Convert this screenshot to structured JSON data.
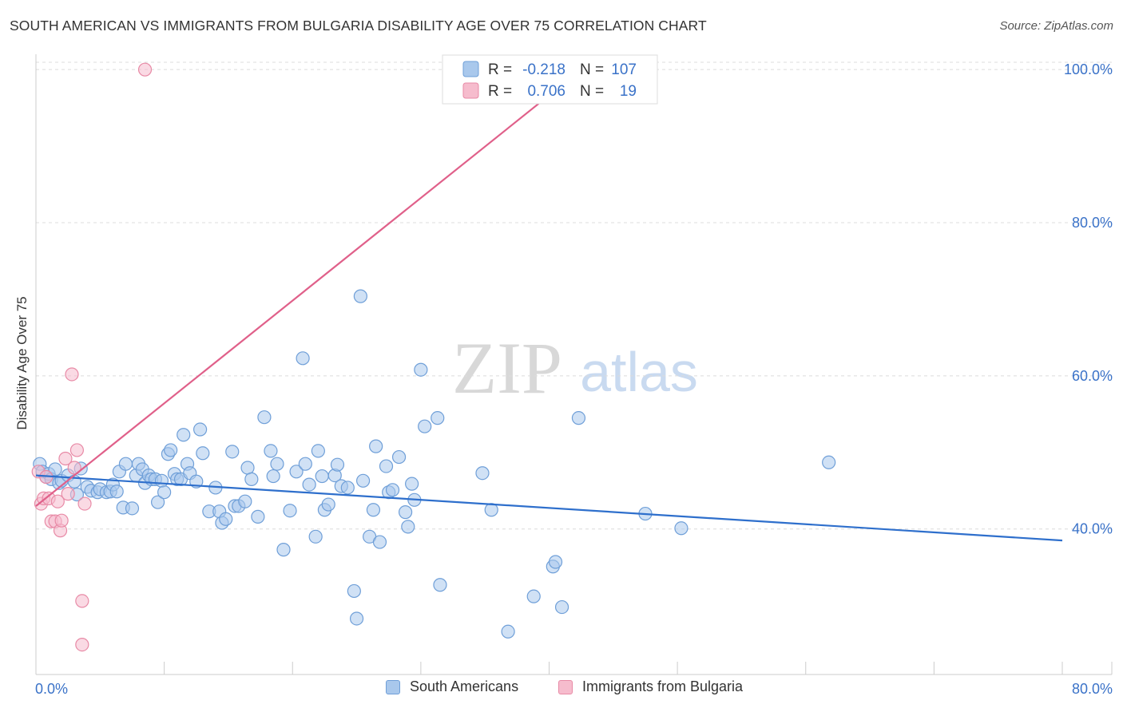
{
  "header": {
    "title": "SOUTH AMERICAN VS IMMIGRANTS FROM BULGARIA DISABILITY AGE OVER 75 CORRELATION CHART",
    "source": "Source: ZipAtlas.com"
  },
  "watermark": {
    "zip": "ZIP",
    "atlas": "atlas"
  },
  "colors": {
    "blue_fill": "#a9c8ec",
    "blue_stroke": "#6f9fd8",
    "blue_line": "#2e6fcc",
    "pink_fill": "#f6bccd",
    "pink_stroke": "#e88aa6",
    "pink_line": "#e0608a",
    "axis_text": "#3a72c8",
    "grid": "#dcdcdc"
  },
  "chart_data": {
    "type": "scatter",
    "title": "SOUTH AMERICAN VS IMMIGRANTS FROM BULGARIA DISABILITY AGE OVER 75 CORRELATION CHART",
    "xlabel": "",
    "ylabel": "Disability Age Over 75",
    "xlim": [
      0,
      80
    ],
    "ylim": [
      21,
      102
    ],
    "x_tick_labels": [
      "0.0%",
      "80.0%"
    ],
    "y_ticks": [
      40,
      60,
      80,
      100
    ],
    "y_tick_labels": [
      "40.0%",
      "60.0%",
      "80.0%",
      "100.0%"
    ],
    "legend": {
      "rows": [
        {
          "r_label": "R =",
          "r_value": "-0.218",
          "n_label": "N =",
          "n_value": "107"
        },
        {
          "r_label": "R =",
          "r_value": "0.706",
          "n_label": "N =",
          "n_value": "19"
        }
      ]
    },
    "series": [
      {
        "name": "South Americans",
        "trend": {
          "x": [
            0,
            80
          ],
          "y": [
            47.0,
            38.5
          ]
        },
        "points": [
          {
            "x": 0.3,
            "y": 48.5
          },
          {
            "x": 0.5,
            "y": 47.5
          },
          {
            "x": 0.8,
            "y": 46.8
          },
          {
            "x": 1.0,
            "y": 47.2
          },
          {
            "x": 1.2,
            "y": 46.5
          },
          {
            "x": 1.5,
            "y": 47.8
          },
          {
            "x": 1.8,
            "y": 46.0
          },
          {
            "x": 2.0,
            "y": 46.3
          },
          {
            "x": 2.5,
            "y": 47.0
          },
          {
            "x": 3.0,
            "y": 46.2
          },
          {
            "x": 3.2,
            "y": 44.5
          },
          {
            "x": 3.5,
            "y": 47.9
          },
          {
            "x": 4.0,
            "y": 45.5
          },
          {
            "x": 4.3,
            "y": 45.0
          },
          {
            "x": 4.8,
            "y": 44.8
          },
          {
            "x": 5.0,
            "y": 45.2
          },
          {
            "x": 5.5,
            "y": 44.8
          },
          {
            "x": 5.8,
            "y": 44.9
          },
          {
            "x": 6.0,
            "y": 45.8
          },
          {
            "x": 6.3,
            "y": 44.9
          },
          {
            "x": 6.5,
            "y": 47.5
          },
          {
            "x": 6.8,
            "y": 42.8
          },
          {
            "x": 7.0,
            "y": 48.5
          },
          {
            "x": 7.5,
            "y": 42.7
          },
          {
            "x": 7.8,
            "y": 47.0
          },
          {
            "x": 8.0,
            "y": 48.5
          },
          {
            "x": 8.3,
            "y": 47.8
          },
          {
            "x": 8.5,
            "y": 46.0
          },
          {
            "x": 8.8,
            "y": 47.0
          },
          {
            "x": 9.0,
            "y": 46.5
          },
          {
            "x": 9.3,
            "y": 46.5
          },
          {
            "x": 9.5,
            "y": 43.5
          },
          {
            "x": 9.8,
            "y": 46.3
          },
          {
            "x": 10.0,
            "y": 44.8
          },
          {
            "x": 10.3,
            "y": 49.8
          },
          {
            "x": 10.5,
            "y": 50.3
          },
          {
            "x": 10.8,
            "y": 47.2
          },
          {
            "x": 11.0,
            "y": 46.5
          },
          {
            "x": 11.3,
            "y": 46.5
          },
          {
            "x": 11.5,
            "y": 52.3
          },
          {
            "x": 11.8,
            "y": 48.5
          },
          {
            "x": 12.0,
            "y": 47.3
          },
          {
            "x": 12.5,
            "y": 46.2
          },
          {
            "x": 12.8,
            "y": 53.0
          },
          {
            "x": 13.0,
            "y": 49.9
          },
          {
            "x": 13.5,
            "y": 42.3
          },
          {
            "x": 14.0,
            "y": 45.4
          },
          {
            "x": 14.3,
            "y": 42.3
          },
          {
            "x": 14.5,
            "y": 40.8
          },
          {
            "x": 14.8,
            "y": 41.3
          },
          {
            "x": 15.3,
            "y": 50.1
          },
          {
            "x": 15.5,
            "y": 43.0
          },
          {
            "x": 15.8,
            "y": 43.0
          },
          {
            "x": 16.3,
            "y": 43.6
          },
          {
            "x": 16.5,
            "y": 48.0
          },
          {
            "x": 16.8,
            "y": 46.5
          },
          {
            "x": 17.3,
            "y": 41.6
          },
          {
            "x": 17.8,
            "y": 54.6
          },
          {
            "x": 18.3,
            "y": 50.2
          },
          {
            "x": 18.5,
            "y": 46.9
          },
          {
            "x": 18.8,
            "y": 48.5
          },
          {
            "x": 19.3,
            "y": 37.3
          },
          {
            "x": 19.8,
            "y": 42.4
          },
          {
            "x": 20.3,
            "y": 47.5
          },
          {
            "x": 20.8,
            "y": 62.3
          },
          {
            "x": 21.0,
            "y": 48.5
          },
          {
            "x": 21.3,
            "y": 45.8
          },
          {
            "x": 21.8,
            "y": 39.0
          },
          {
            "x": 22.0,
            "y": 50.2
          },
          {
            "x": 22.3,
            "y": 46.9
          },
          {
            "x": 22.5,
            "y": 42.5
          },
          {
            "x": 22.8,
            "y": 43.2
          },
          {
            "x": 23.3,
            "y": 47.0
          },
          {
            "x": 23.5,
            "y": 48.4
          },
          {
            "x": 23.8,
            "y": 45.6
          },
          {
            "x": 24.3,
            "y": 45.4
          },
          {
            "x": 24.8,
            "y": 31.9
          },
          {
            "x": 25.0,
            "y": 28.3
          },
          {
            "x": 25.3,
            "y": 70.4
          },
          {
            "x": 25.5,
            "y": 46.3
          },
          {
            "x": 26.0,
            "y": 39.0
          },
          {
            "x": 26.3,
            "y": 42.5
          },
          {
            "x": 26.5,
            "y": 50.8
          },
          {
            "x": 26.8,
            "y": 38.3
          },
          {
            "x": 27.3,
            "y": 48.2
          },
          {
            "x": 27.5,
            "y": 44.8
          },
          {
            "x": 27.8,
            "y": 45.1
          },
          {
            "x": 28.3,
            "y": 49.4
          },
          {
            "x": 28.8,
            "y": 42.2
          },
          {
            "x": 29.0,
            "y": 40.3
          },
          {
            "x": 29.3,
            "y": 45.9
          },
          {
            "x": 29.5,
            "y": 43.8
          },
          {
            "x": 30.0,
            "y": 60.8
          },
          {
            "x": 30.3,
            "y": 53.4
          },
          {
            "x": 31.3,
            "y": 54.5
          },
          {
            "x": 31.5,
            "y": 32.7
          },
          {
            "x": 34.8,
            "y": 47.3
          },
          {
            "x": 35.5,
            "y": 42.5
          },
          {
            "x": 36.8,
            "y": 26.6
          },
          {
            "x": 38.8,
            "y": 31.2
          },
          {
            "x": 40.3,
            "y": 35.1
          },
          {
            "x": 40.5,
            "y": 35.7
          },
          {
            "x": 41.0,
            "y": 29.8
          },
          {
            "x": 42.3,
            "y": 54.5
          },
          {
            "x": 50.3,
            "y": 40.1
          },
          {
            "x": 61.8,
            "y": 48.7
          },
          {
            "x": 47.5,
            "y": 42.0
          }
        ]
      },
      {
        "name": "Immigrants from Bulgaria",
        "trend": {
          "x": [
            0,
            42.5
          ],
          "y": [
            43.0,
            100.0
          ]
        },
        "points": [
          {
            "x": 0.2,
            "y": 47.5
          },
          {
            "x": 0.4,
            "y": 43.3
          },
          {
            "x": 0.6,
            "y": 44.0
          },
          {
            "x": 0.8,
            "y": 46.8
          },
          {
            "x": 1.0,
            "y": 44.0
          },
          {
            "x": 1.2,
            "y": 41.0
          },
          {
            "x": 1.5,
            "y": 41.0
          },
          {
            "x": 1.7,
            "y": 43.6
          },
          {
            "x": 1.9,
            "y": 39.8
          },
          {
            "x": 2.0,
            "y": 41.1
          },
          {
            "x": 2.3,
            "y": 49.2
          },
          {
            "x": 2.5,
            "y": 44.6
          },
          {
            "x": 2.8,
            "y": 60.2
          },
          {
            "x": 3.0,
            "y": 48.0
          },
          {
            "x": 3.2,
            "y": 50.3
          },
          {
            "x": 3.6,
            "y": 30.6
          },
          {
            "x": 3.8,
            "y": 43.3
          },
          {
            "x": 3.6,
            "y": 24.9
          },
          {
            "x": 8.5,
            "y": 100.0
          }
        ]
      }
    ]
  }
}
